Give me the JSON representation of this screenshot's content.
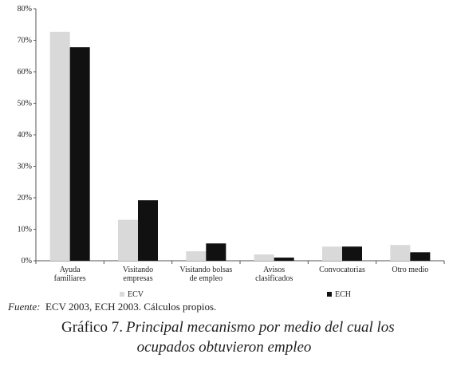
{
  "chart_data": {
    "type": "bar",
    "categories": [
      [
        "Ayuda",
        "familiares"
      ],
      [
        "Visitando",
        "empresas"
      ],
      [
        "Visitando bolsas",
        "de empleo"
      ],
      [
        "Avisos",
        "clasificados"
      ],
      [
        "Convocatorias"
      ],
      [
        "Otro medio"
      ]
    ],
    "series": [
      {
        "name": "ECV",
        "color": "#d9d9d9",
        "values": [
          72.7,
          13,
          3,
          2,
          4.5,
          5
        ]
      },
      {
        "name": "ECH",
        "color": "#111111",
        "values": [
          67.8,
          19.2,
          5.5,
          1,
          4.5,
          2.7
        ]
      }
    ],
    "ylim": [
      0,
      80
    ],
    "yticks": [
      {
        "value": 0,
        "label": "0%"
      },
      {
        "value": 10,
        "label": "10%"
      },
      {
        "value": 20,
        "label": "20%"
      },
      {
        "value": 30,
        "label": "30%"
      },
      {
        "value": 40,
        "label": "40%"
      },
      {
        "value": 50,
        "label": "50%"
      },
      {
        "value": 60,
        "label": "60%"
      },
      {
        "value": 70,
        "label": "70%"
      },
      {
        "value": 80,
        "label": "80%"
      }
    ],
    "source_label": "Fuente:",
    "source": "ECV 2003, ECH 2003. Cálculos propios.",
    "caption_label": "Gráfico 7.",
    "caption": [
      "Principal mecanismo por medio del cual los",
      "ocupados obtuvieron empleo"
    ]
  }
}
